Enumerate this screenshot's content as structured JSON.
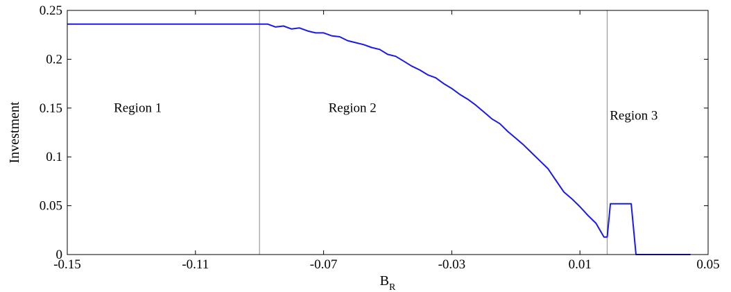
{
  "chart_data": {
    "type": "line",
    "title": "",
    "xlabel": "B",
    "xlabel_subscript": "R",
    "ylabel": "Investment",
    "xlim": [
      -0.15,
      0.05
    ],
    "ylim": [
      0,
      0.25
    ],
    "xticks": [
      "-0.15",
      "-0.11",
      "-0.07",
      "-0.03",
      "0.01",
      "0.05"
    ],
    "xtick_values": [
      -0.15,
      -0.11,
      -0.07,
      -0.03,
      0.01,
      0.05
    ],
    "yticks": [
      "0",
      "0.05",
      "0.1",
      "0.15",
      "0.2",
      "0.25"
    ],
    "ytick_values": [
      0,
      0.05,
      0.1,
      0.15,
      0.2,
      0.25
    ],
    "grid": false,
    "line_color": "#1a1ae6",
    "boundary_color": "#999999",
    "vertical_lines": [
      -0.09,
      0.0185
    ],
    "regions": [
      {
        "label": "Region 1",
        "x": -0.128,
        "y": 0.146
      },
      {
        "label": "Region 2",
        "x": -0.061,
        "y": 0.146
      },
      {
        "label": "Region 3",
        "x": 0.0268,
        "y": 0.138
      }
    ],
    "series": [
      {
        "x": [
          -0.15,
          -0.09,
          -0.0875,
          -0.085,
          -0.0825,
          -0.08,
          -0.0775,
          -0.075,
          -0.0725,
          -0.07,
          -0.0675,
          -0.065,
          -0.0625,
          -0.06,
          -0.0575,
          -0.055,
          -0.0525,
          -0.05,
          -0.0475,
          -0.045,
          -0.0425,
          -0.04,
          -0.0375,
          -0.035,
          -0.0325,
          -0.03,
          -0.0275,
          -0.025,
          -0.0225,
          -0.02,
          -0.0175,
          -0.015,
          -0.0125,
          -0.01,
          -0.0075,
          -0.005,
          -0.0025,
          0.0,
          0.0025,
          0.005,
          0.0075,
          0.01,
          0.0125,
          0.015,
          0.0175,
          0.0185,
          0.0195,
          0.025,
          0.026,
          0.0275,
          0.0445
        ],
        "y": [
          0.236,
          0.236,
          0.236,
          0.233,
          0.234,
          0.231,
          0.232,
          0.229,
          0.227,
          0.227,
          0.224,
          0.223,
          0.219,
          0.217,
          0.215,
          0.212,
          0.21,
          0.205,
          0.203,
          0.198,
          0.193,
          0.189,
          0.184,
          0.181,
          0.175,
          0.17,
          0.164,
          0.159,
          0.153,
          0.146,
          0.139,
          0.134,
          0.126,
          0.119,
          0.112,
          0.104,
          0.096,
          0.088,
          0.076,
          0.064,
          0.057,
          0.049,
          0.04,
          0.032,
          0.018,
          0.018,
          0.052,
          0.052,
          0.052,
          0.0,
          0.0
        ]
      }
    ]
  }
}
